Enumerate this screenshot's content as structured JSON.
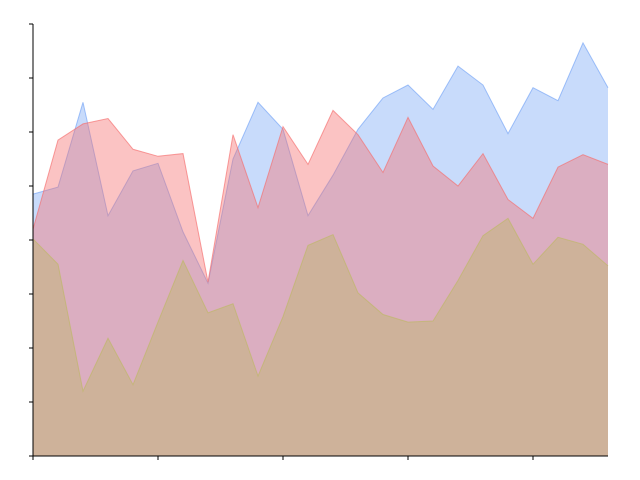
{
  "chart_data": {
    "type": "area",
    "x": [
      0,
      1,
      2,
      3,
      4,
      5,
      6,
      7,
      8,
      9,
      10,
      11,
      12,
      13,
      14,
      15,
      16,
      17,
      18,
      19,
      20,
      21,
      22,
      23
    ],
    "xlim": [
      0,
      23
    ],
    "ylim": [
      0,
      8
    ],
    "x_ticks": [
      0,
      5,
      10,
      15,
      20
    ],
    "y_ticks": [
      0,
      1,
      2,
      3,
      4,
      5,
      6,
      7,
      8
    ],
    "tick_labels_shown": false,
    "spines": [
      "left",
      "bottom"
    ],
    "grid": false,
    "legend": false,
    "series": [
      {
        "color": "#6fa0f5",
        "opacity": 0.38,
        "values": [
          4.85,
          4.98,
          6.55,
          4.45,
          5.28,
          5.42,
          4.15,
          3.2,
          5.5,
          6.55,
          6.05,
          4.45,
          5.2,
          6.05,
          6.63,
          6.87,
          6.42,
          7.22,
          6.87,
          5.97,
          6.82,
          6.58,
          7.65,
          6.82
        ]
      },
      {
        "color": "#f56f6f",
        "opacity": 0.42,
        "values": [
          4.2,
          5.85,
          6.15,
          6.25,
          5.68,
          5.55,
          5.6,
          3.22,
          5.95,
          4.6,
          6.1,
          5.4,
          6.4,
          5.95,
          5.25,
          6.27,
          5.37,
          5.0,
          5.6,
          4.75,
          4.4,
          5.35,
          5.58,
          5.4
        ]
      },
      {
        "color": "#bfb86a",
        "opacity": 0.45,
        "values": [
          4.02,
          3.55,
          1.2,
          2.18,
          1.32,
          2.48,
          3.62,
          2.65,
          2.82,
          1.48,
          2.58,
          3.9,
          4.1,
          3.02,
          2.62,
          2.48,
          2.5,
          3.25,
          4.08,
          4.4,
          3.55,
          4.05,
          3.92,
          3.52
        ]
      }
    ]
  }
}
